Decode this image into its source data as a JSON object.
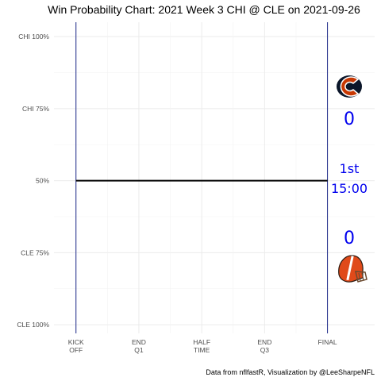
{
  "chart_data": {
    "type": "line",
    "title": "Win Probability Chart: 2021 Week 3 CHI @ CLE on 2021-09-26",
    "y_ticks": [
      {
        "label": "CHI 100%",
        "value": 1.0
      },
      {
        "label": "CHI 75%",
        "value": 0.75
      },
      {
        "label": "50%",
        "value": 0.5
      },
      {
        "label": "CLE 75%",
        "value": 0.25
      },
      {
        "label": "CLE 100%",
        "value": 0.0
      }
    ],
    "x_ticks": [
      {
        "line1": "KICK",
        "line2": "OFF",
        "value": 0
      },
      {
        "line1": "END",
        "line2": "Q1",
        "value": 1
      },
      {
        "line1": "HALF",
        "line2": "TIME",
        "value": 2
      },
      {
        "line1": "END",
        "line2": "Q3",
        "value": 3
      },
      {
        "line1": "FINAL",
        "line2": "",
        "value": 4
      }
    ],
    "xlim": [
      -0.35,
      4.75
    ],
    "ylim": [
      -0.03,
      1.05
    ],
    "grid": true,
    "series": [
      {
        "x": [
          0,
          4
        ],
        "y": [
          0.5,
          0.5
        ],
        "color": "#000000"
      }
    ],
    "vlines": [
      0,
      4
    ],
    "vline_color": "#1f2b8a",
    "teams": {
      "away": {
        "abbr": "CHI",
        "score": "0",
        "logo": "bears-logo"
      },
      "home": {
        "abbr": "CLE",
        "score": "0",
        "logo": "browns-helmet-logo"
      }
    },
    "game_clock": {
      "quarter": "1st",
      "time": "15:00"
    },
    "score_color": "#0000ee",
    "caption": "Data from nflfastR, Visualization by @LeeSharpeNFL"
  }
}
